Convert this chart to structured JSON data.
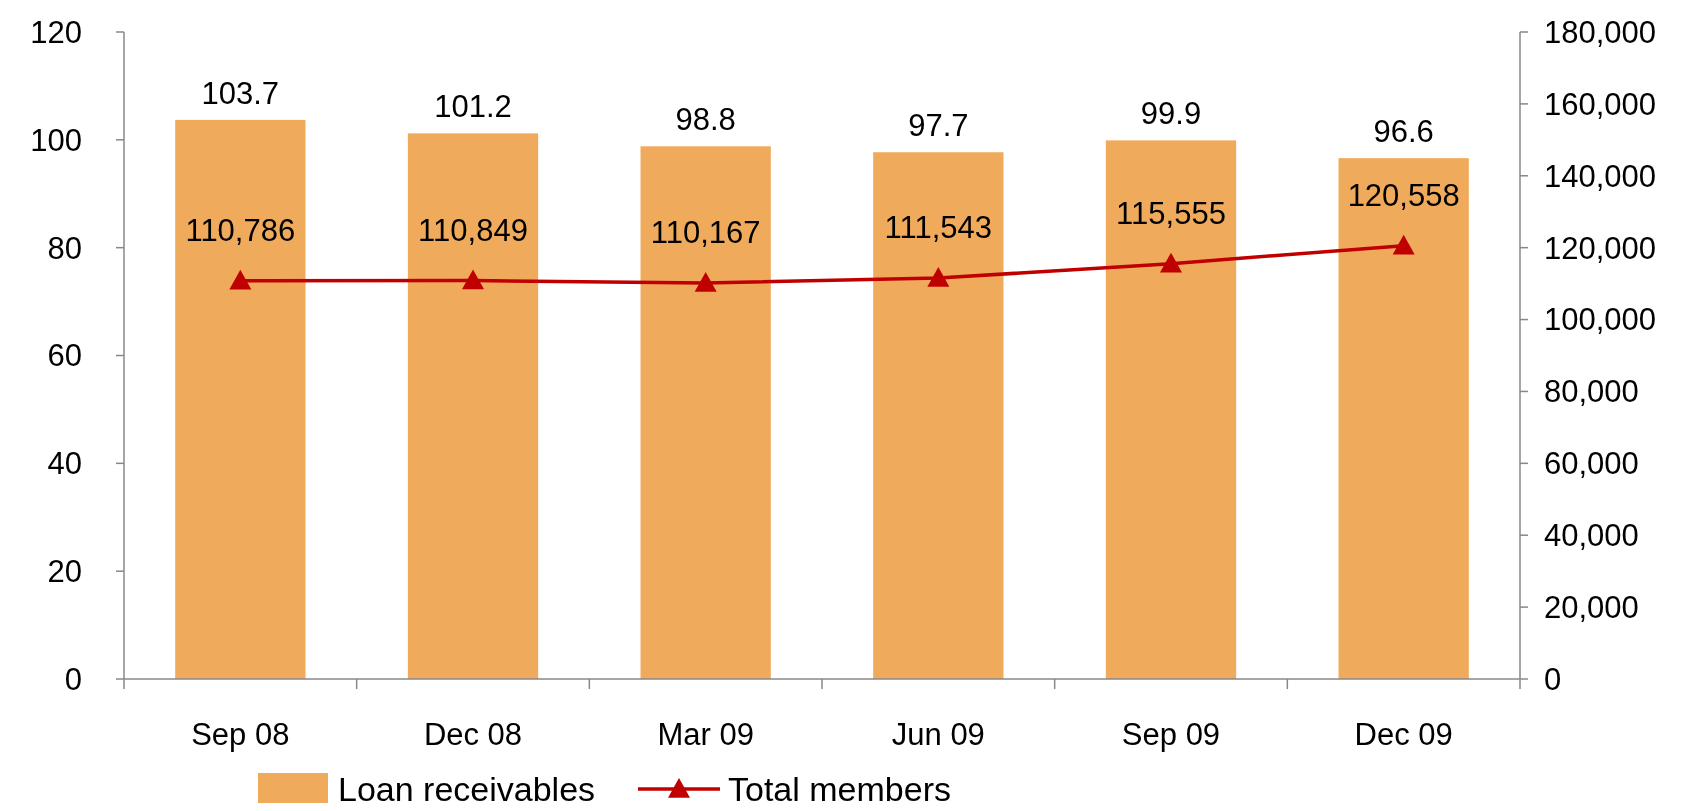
{
  "chart_data": {
    "type": "bar",
    "categories": [
      "Sep 08",
      "Dec 08",
      "Mar 09",
      "Jun 09",
      "Sep 09",
      "Dec 09"
    ],
    "series": [
      {
        "name": "Loan receivables",
        "color": "#f0aa5c",
        "values": [
          103.7,
          101.2,
          98.8,
          97.7,
          99.9,
          96.6
        ]
      },
      {
        "name": "Total members",
        "type": "line",
        "axis": "y2",
        "color": "#c00000",
        "marker": "triangle",
        "values": [
          110786,
          110849,
          110167,
          111543,
          115555,
          120558
        ],
        "value_labels": [
          "110,786",
          "110,849",
          "110,167",
          "111,543",
          "115,555",
          "120,558"
        ]
      }
    ],
    "ylim": [
      0,
      120
    ],
    "yticks": [
      0,
      20,
      40,
      60,
      80,
      100,
      120
    ],
    "y2lim": [
      0,
      180000
    ],
    "y2ticks": [
      0,
      {
        "value": 20000,
        "label": "20,000"
      },
      {
        "value": 40000,
        "label": "40,000"
      },
      {
        "value": 60000,
        "label": "60,000"
      },
      {
        "value": 80000,
        "label": "80,000"
      },
      {
        "value": 100000,
        "label": "100,000"
      },
      {
        "value": 120000,
        "label": "120,000"
      },
      {
        "value": 140000,
        "label": "140,000"
      },
      {
        "value": 160000,
        "label": "160,000"
      },
      {
        "value": 180000,
        "label": "180,000"
      }
    ],
    "data_labels": true,
    "legend": "bottom",
    "grid": false
  }
}
